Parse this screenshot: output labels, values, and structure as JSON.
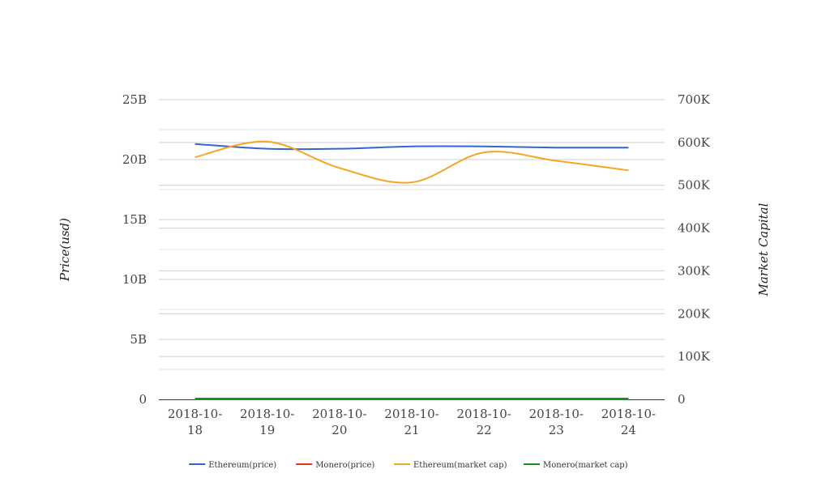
{
  "chart_data": {
    "type": "line",
    "categories": [
      "2018-10-18",
      "2018-10-19",
      "2018-10-20",
      "2018-10-21",
      "2018-10-22",
      "2018-10-23",
      "2018-10-24"
    ],
    "category_lines": [
      [
        "2018-10-",
        "18"
      ],
      [
        "2018-10-",
        "19"
      ],
      [
        "2018-10-",
        "20"
      ],
      [
        "2018-10-",
        "21"
      ],
      [
        "2018-10-",
        "22"
      ],
      [
        "2018-10-",
        "23"
      ],
      [
        "2018-10-",
        "24"
      ]
    ],
    "ylabel_left": "Price(usd)",
    "ylabel_right": "Market Capital",
    "ylim_left": [
      0,
      25000000000
    ],
    "ylim_right": [
      0,
      700000
    ],
    "ticks_left": [
      {
        "value": 0,
        "label": "0"
      },
      {
        "value": 5000000000,
        "label": "5B"
      },
      {
        "value": 10000000000,
        "label": "10B"
      },
      {
        "value": 15000000000,
        "label": "15B"
      },
      {
        "value": 20000000000,
        "label": "20B"
      },
      {
        "value": 25000000000,
        "label": "25B"
      }
    ],
    "ticks_right": [
      {
        "value": 0,
        "label": "0"
      },
      {
        "value": 100000,
        "label": "100K"
      },
      {
        "value": 200000,
        "label": "200K"
      },
      {
        "value": 300000,
        "label": "300K"
      },
      {
        "value": 400000,
        "label": "400K"
      },
      {
        "value": 500000,
        "label": "500K"
      },
      {
        "value": 600000,
        "label": "600K"
      },
      {
        "value": 700000,
        "label": "700K"
      }
    ],
    "series": [
      {
        "name": "Ethereum(price)",
        "axis": "left",
        "color": "#3366cc",
        "values": [
          21300000000,
          20900000000,
          20900000000,
          21100000000,
          21100000000,
          21000000000,
          21000000000
        ]
      },
      {
        "name": "Monero(price)",
        "axis": "left",
        "color": "#dc3912",
        "values": [
          0,
          0,
          0,
          0,
          0,
          0,
          0
        ]
      },
      {
        "name": "Ethereum(market cap)",
        "axis": "left",
        "color": "#f5a623",
        "values": [
          20200000000,
          21500000000,
          19300000000,
          18100000000,
          20600000000,
          19900000000,
          19100000000
        ]
      },
      {
        "name": "Monero(market cap)",
        "axis": "right",
        "color": "#109618",
        "values": [
          1800,
          1800,
          1800,
          1800,
          1800,
          1800,
          1800
        ]
      }
    ],
    "grid": true,
    "legend_position": "bottom"
  }
}
